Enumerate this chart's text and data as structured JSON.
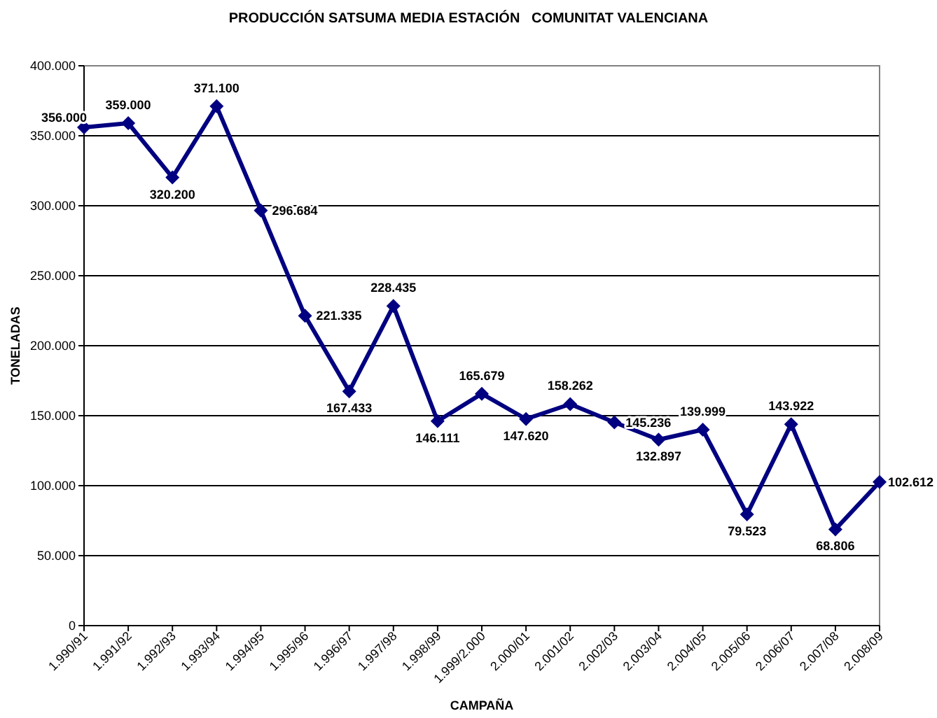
{
  "chart_data": {
    "type": "line",
    "title": "PRODUCCIÓN SATSUMA MEDIA ESTACIÓN   COMUNITAT VALENCIANA",
    "xlabel": "CAMPAÑA",
    "ylabel": "TONELADAS",
    "categories": [
      "1.990/91",
      "1.991/92",
      "1.992/93",
      "1.993/94",
      "1.994/95",
      "1.995/96",
      "1.996/97",
      "1.997/98",
      "1.998/99",
      "1.999/2.000",
      "2.000/01",
      "2.001/02",
      "2.002/03",
      "2.003/04",
      "2.004/05",
      "2.005/06",
      "2.006/07",
      "2.007/08",
      "2.008/09"
    ],
    "series": [
      {
        "color": "#000080",
        "values": [
          356000,
          359000,
          320200,
          371100,
          296684,
          221335,
          167433,
          228435,
          146111,
          165679,
          147620,
          158262,
          145236,
          132897,
          139999,
          79523,
          143922,
          68806,
          102612
        ],
        "value_labels": [
          "356.000",
          "359.000",
          "320.200",
          "371.100",
          "296.684",
          "221.335",
          "167.433",
          "228.435",
          "146.111",
          "165.679",
          "147.620",
          "158.262",
          "145.236",
          "132.897",
          "139.999",
          "79.523",
          "143.922",
          "68.806",
          "102.612"
        ]
      }
    ],
    "ylim": [
      0,
      400000
    ],
    "yticks": [
      {
        "value": 0,
        "label": "0"
      },
      {
        "value": 50000,
        "label": "50.000"
      },
      {
        "value": 100000,
        "label": "100.000"
      },
      {
        "value": 150000,
        "label": "150.000"
      },
      {
        "value": 200000,
        "label": "200.000"
      },
      {
        "value": 250000,
        "label": "250.000"
      },
      {
        "value": 300000,
        "label": "300.000"
      },
      {
        "value": 350000,
        "label": "350.000"
      },
      {
        "value": 400000,
        "label": "400.000"
      }
    ],
    "grid": "y",
    "marker": "diamond",
    "line_style": "solid"
  }
}
